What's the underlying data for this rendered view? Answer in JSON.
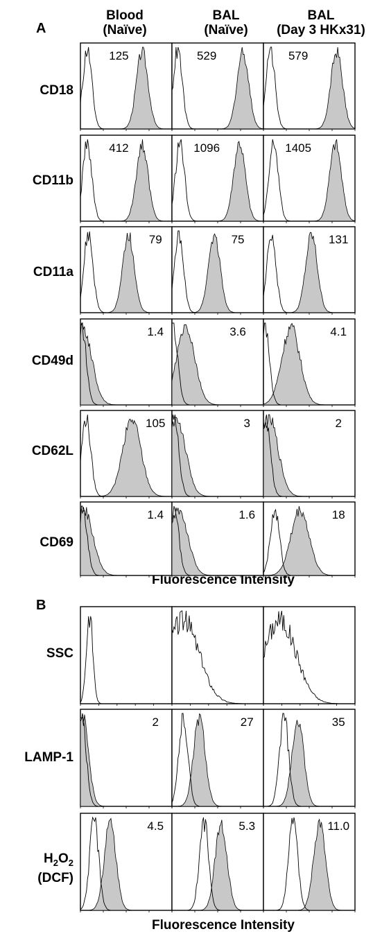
{
  "panel_a": {
    "label": "A",
    "columns": [
      {
        "line1": "Blood",
        "line2": "(Naïve)"
      },
      {
        "line1": "BAL",
        "line2": "(Naïve)"
      },
      {
        "line1": "BAL",
        "line2": "(Day 3 HKx31)"
      }
    ],
    "x_axis_title": "Fluorescence Intensity"
  },
  "panel_b": {
    "label": "B",
    "x_axis_title": "Fluorescence Intensity"
  },
  "chart_data": [
    {
      "type": "histogram",
      "panel": "A",
      "marker": "CD18",
      "groups": [
        "Blood (Naïve)",
        "BAL (Naïve)",
        "BAL (Day 3 HKx31)"
      ],
      "values": [
        "125",
        "529",
        "579"
      ],
      "peak_log10_isotype": [
        0.3,
        0.25,
        0.3
      ],
      "peak_log10_stained": [
        2.7,
        3.1,
        3.2
      ],
      "x_scale": "log",
      "xlim": [
        1,
        10000
      ]
    },
    {
      "type": "histogram",
      "panel": "A",
      "marker": "CD11b",
      "groups": [
        "Blood (Naïve)",
        "BAL (Naïve)",
        "BAL (Day 3 HKx31)"
      ],
      "values": [
        "412",
        "1096",
        "1405"
      ],
      "peak_log10_isotype": [
        0.3,
        0.35,
        0.45
      ],
      "peak_log10_stained": [
        2.7,
        2.95,
        3.15
      ],
      "x_scale": "log",
      "xlim": [
        1,
        10000
      ]
    },
    {
      "type": "histogram",
      "panel": "A",
      "marker": "CD11a",
      "groups": [
        "Blood (Naïve)",
        "BAL (Naïve)",
        "BAL (Day 3 HKx31)"
      ],
      "values": [
        "79",
        "75",
        "131"
      ],
      "peak_log10_isotype": [
        0.35,
        0.3,
        0.35
      ],
      "peak_log10_stained": [
        2.1,
        1.85,
        2.1
      ],
      "x_scale": "log",
      "xlim": [
        1,
        10000
      ]
    },
    {
      "type": "histogram",
      "panel": "A",
      "marker": "CD49d",
      "groups": [
        "Blood (Naïve)",
        "BAL (Naïve)",
        "BAL (Day 3 HKx31)"
      ],
      "values": [
        "1.4",
        "3.6",
        "4.1"
      ],
      "peak_log10_isotype": [
        0.05,
        0.05,
        0.05
      ],
      "peak_log10_stained": [
        0.1,
        0.6,
        1.2
      ],
      "x_scale": "log",
      "xlim": [
        1,
        10000
      ]
    },
    {
      "type": "histogram",
      "panel": "A",
      "marker": "CD62L",
      "groups": [
        "Blood (Naïve)",
        "BAL (Naïve)",
        "BAL (Day 3 HKx31)"
      ],
      "values": [
        "105",
        "3",
        "2"
      ],
      "peak_log10_isotype": [
        0.25,
        0.1,
        0.1
      ],
      "peak_log10_stained": [
        2.25,
        0.2,
        0.25
      ],
      "x_scale": "log",
      "xlim": [
        1,
        10000
      ]
    },
    {
      "type": "histogram",
      "panel": "A",
      "marker": "CD69",
      "groups": [
        "Blood (Naïve)",
        "BAL (Naïve)",
        "BAL (Day 3 HKx31)"
      ],
      "values": [
        "1.4",
        "1.6",
        "18"
      ],
      "peak_log10_isotype": [
        0.1,
        0.1,
        0.5
      ],
      "peak_log10_stained": [
        0.15,
        0.3,
        1.6
      ],
      "x_scale": "log",
      "xlim": [
        1,
        10000
      ]
    },
    {
      "type": "histogram",
      "panel": "B",
      "marker": "SSC",
      "groups": [
        "Blood (Naïve)",
        "BAL (Naïve)",
        "BAL (Day 3 HKx31)"
      ],
      "values": [
        "",
        "",
        ""
      ],
      "peak_ssc": [
        100,
        120,
        180
      ],
      "x_scale": "linear",
      "xlim": [
        0,
        1000
      ]
    },
    {
      "type": "histogram",
      "panel": "B",
      "marker": "LAMP-1",
      "groups": [
        "Blood (Naïve)",
        "BAL (Naïve)",
        "BAL (Day 3 HKx31)"
      ],
      "values": [
        "2",
        "27",
        "35"
      ],
      "peak_log10_isotype": [
        0.05,
        0.5,
        0.9
      ],
      "peak_log10_stained": [
        0.1,
        1.2,
        1.5
      ],
      "x_scale": "log",
      "xlim": [
        1,
        10000
      ]
    },
    {
      "type": "histogram",
      "panel": "B",
      "marker": "H2O2 (DCF)",
      "groups": [
        "Blood (Naïve)",
        "BAL (Naïve)",
        "BAL (Day 3 HKx31)"
      ],
      "values": [
        "4.5",
        "5.3",
        "11.0"
      ],
      "peak_log10_isotype": [
        0.6,
        1.4,
        1.3
      ],
      "peak_log10_stained": [
        1.3,
        2.15,
        2.45
      ],
      "x_scale": "log",
      "xlim": [
        1,
        10000
      ]
    }
  ]
}
